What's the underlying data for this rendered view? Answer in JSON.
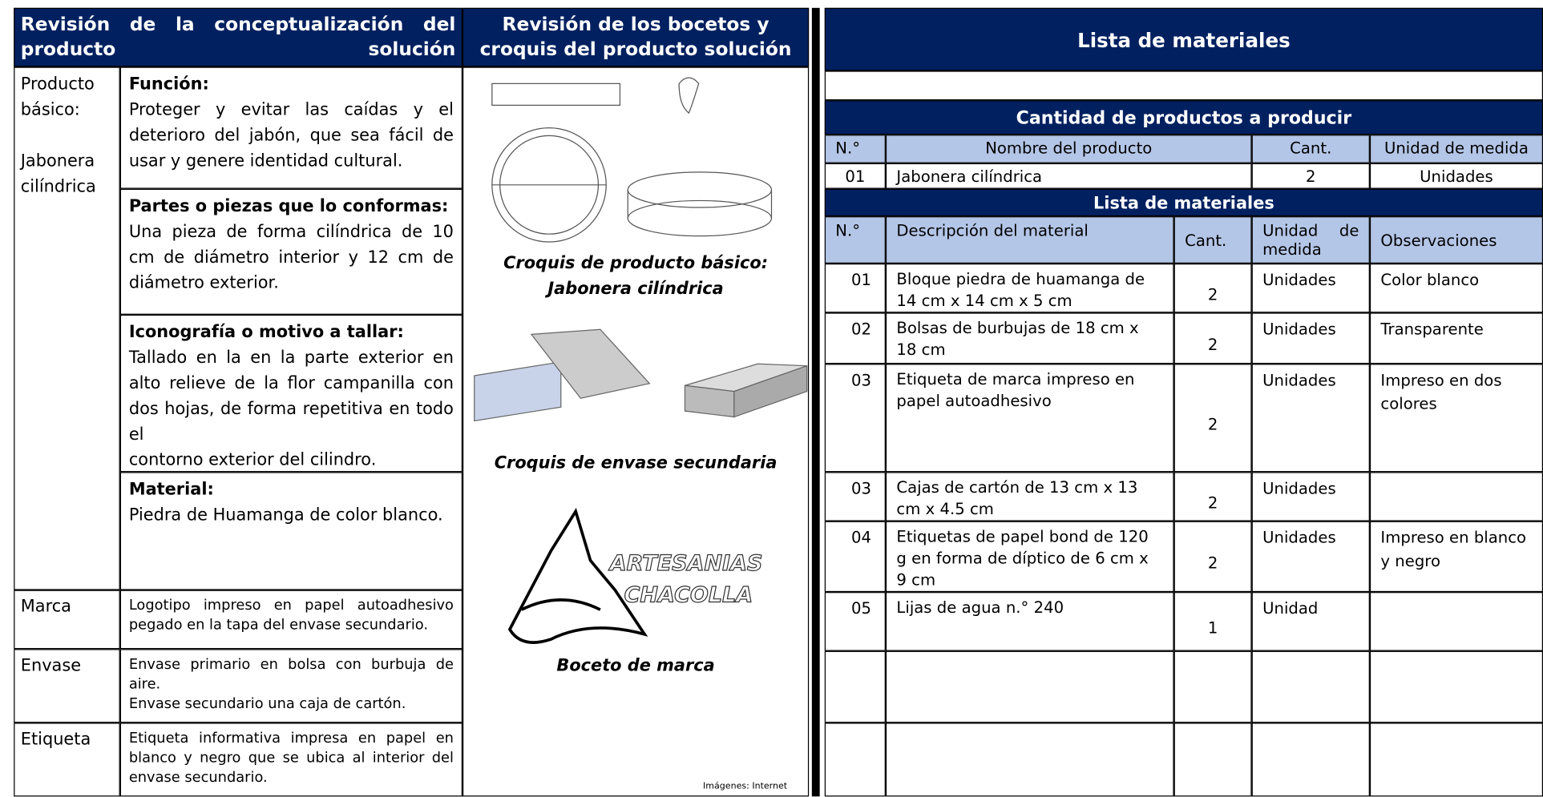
{
  "concept": {
    "title": "Revisión de la conceptualización del producto solución",
    "product_label": "Producto básico:",
    "product_name": "Jabonera cilíndrica",
    "blocks": [
      {
        "heading": "Función:",
        "text": "Proteger y evitar las caídas y el deterioro del jabón, que sea fácil de usar y genere identidad cultural."
      },
      {
        "heading": "Partes o piezas que lo conformas:",
        "text": "Una pieza de forma cilíndrica de 10 cm de diámetro interior y 12 cm de diámetro exterior."
      },
      {
        "heading": "Iconografía o motivo a tallar:",
        "text": "Tallado en la en la parte exterior en alto relieve de la flor campanilla con dos hojas, de forma repetitiva en todo el\ncontorno exterior del cilindro."
      },
      {
        "heading": "Material:",
        "text": "Piedra de Huamanga de color blanco."
      }
    ],
    "rows": [
      {
        "label": "Marca",
        "text": "Logotipo impreso en papel autoadhesivo pegado en la tapa del envase secundario."
      },
      {
        "label": "Envase",
        "text": "Envase primario en bolsa con burbuja de aire.\nEnvase secundario una caja de cartón."
      },
      {
        "label": "Etiqueta",
        "text": "Etiqueta informativa impresa en papel en blanco y negro que se ubica al interior del envase secundario."
      }
    ]
  },
  "sketches": {
    "title": "Revisión de los bocetos y croquis del producto solución",
    "captions": [
      "Croquis de producto básico: Jabonera cilíndrica",
      "Croquis de envase secundaria",
      "Boceto de marca"
    ],
    "logo_text": [
      "ARTESANIAS",
      "CHACOLLA"
    ],
    "credit": "Imágenes: Internet"
  },
  "materials": {
    "title": "Lista de materiales",
    "products": {
      "title": "Cantidad de productos a producir",
      "columns": [
        "N.°",
        "Nombre del producto",
        "Cant.",
        "Unidad de medida"
      ],
      "rows": [
        [
          "01",
          "Jabonera cilíndrica",
          "2",
          "Unidades"
        ]
      ]
    },
    "list": {
      "title": "Lista de materiales",
      "columns": [
        "N.°",
        "Descripción del material",
        "Cant.",
        "Unidad de medida",
        "Observaciones"
      ],
      "rows": [
        [
          "01",
          "Bloque piedra de huamanga de 14 cm x 14 cm x 5 cm",
          "2",
          "Unidades",
          "Color blanco"
        ],
        [
          "02",
          "Bolsas de burbujas de 18 cm x 18 cm",
          "2",
          "Unidades",
          "Transparente"
        ],
        [
          "03",
          "Etiqueta de marca impreso en papel autoadhesivo",
          "2",
          "Unidades",
          "Impreso en dos colores"
        ],
        [
          "03",
          "Cajas de cartón de 13 cm x 13 cm x 4.5 cm",
          "2",
          "Unidades",
          null
        ],
        [
          "04",
          "Etiquetas de papel bond de 120 g en forma de díptico de 6 cm x 9 cm",
          "2",
          "Unidades",
          "Impreso en blanco y negro"
        ],
        [
          "05",
          "Lijas de agua n.° 240",
          "1",
          "Unidad",
          null
        ]
      ]
    }
  }
}
